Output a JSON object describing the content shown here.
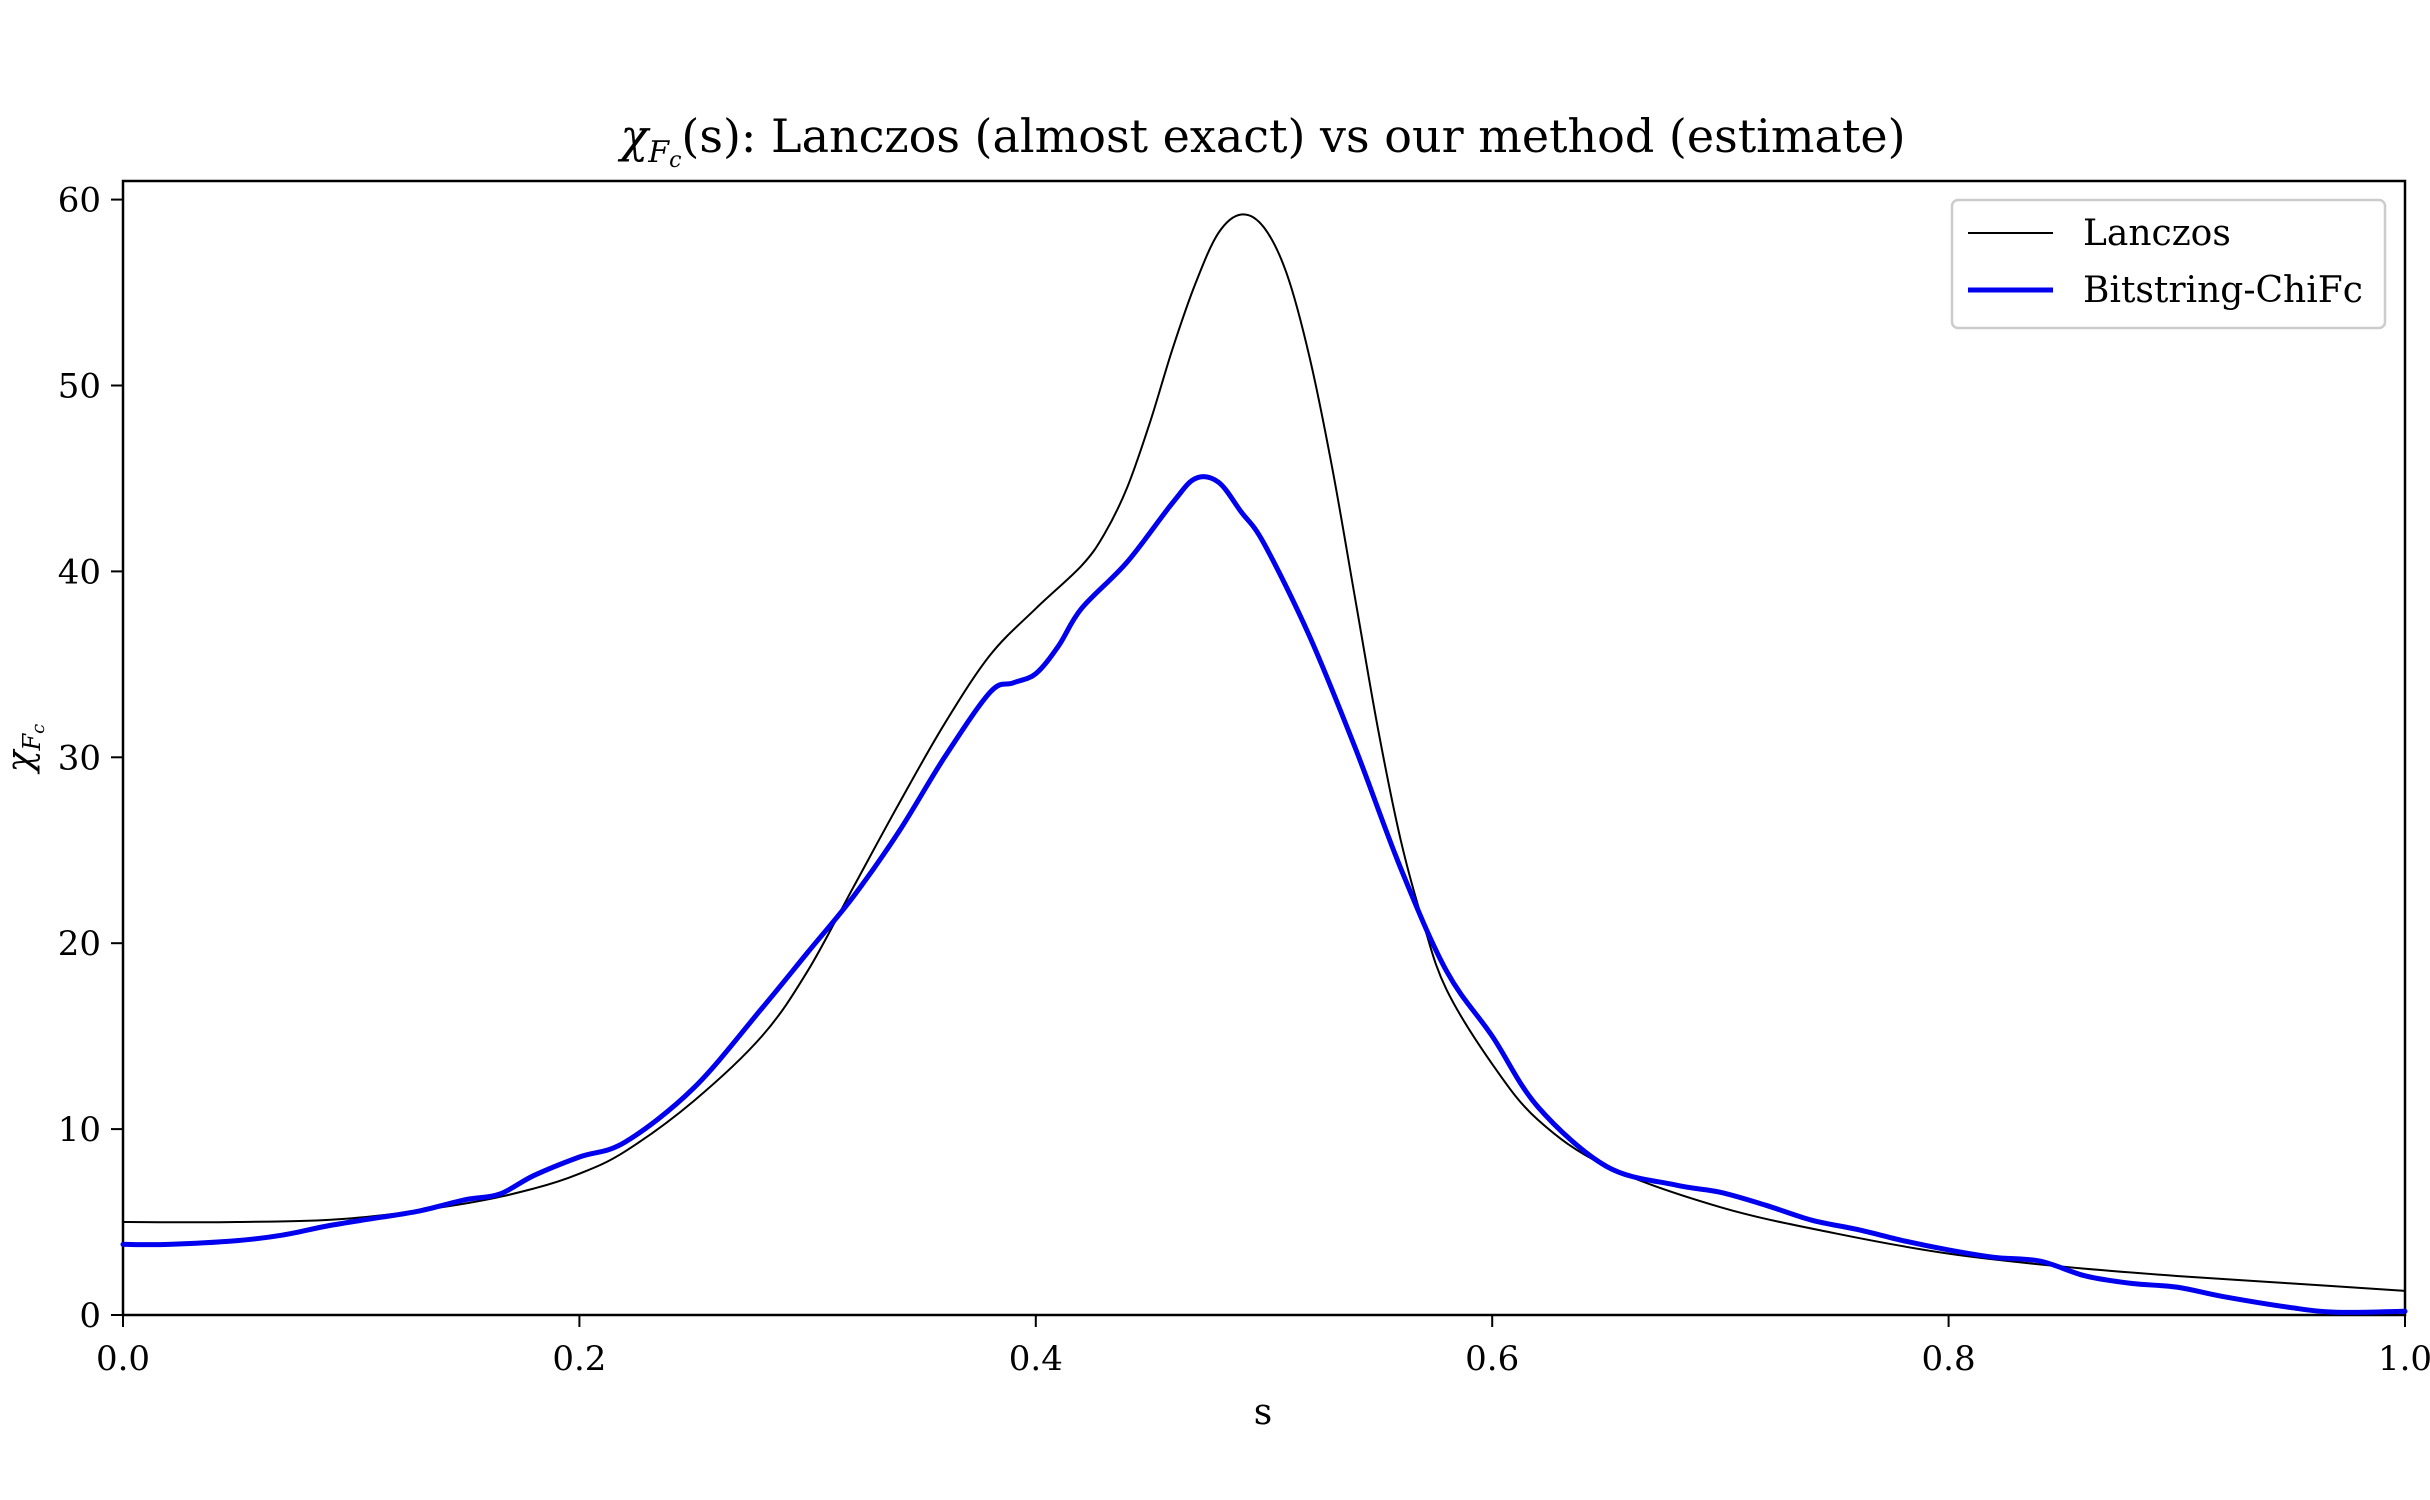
{
  "chart_data": {
    "type": "line",
    "title": {
      "prefix_symbol": "χ",
      "subscript": "F",
      "subsubscript": "c",
      "arg": "(s)",
      "text": ": Lanczos (almost exact) vs our method (estimate)"
    },
    "xlabel": "s",
    "ylabel": {
      "symbol": "χ",
      "subscript": "F",
      "subsubscript": "c"
    },
    "xlim": [
      0.0,
      1.0
    ],
    "ylim": [
      0,
      61
    ],
    "x_ticks": [
      {
        "value": 0.0,
        "label": "0.0"
      },
      {
        "value": 0.2,
        "label": "0.2"
      },
      {
        "value": 0.4,
        "label": "0.4"
      },
      {
        "value": 0.6,
        "label": "0.6"
      },
      {
        "value": 0.8,
        "label": "0.8"
      },
      {
        "value": 1.0,
        "label": "1.0"
      }
    ],
    "y_ticks": [
      {
        "value": 0,
        "label": "0"
      },
      {
        "value": 10,
        "label": "10"
      },
      {
        "value": 20,
        "label": "20"
      },
      {
        "value": 30,
        "label": "30"
      },
      {
        "value": 40,
        "label": "40"
      },
      {
        "value": 50,
        "label": "50"
      },
      {
        "value": 60,
        "label": "60"
      }
    ],
    "grid": false,
    "legend_position": "top-right",
    "series": [
      {
        "name": "Lanczos",
        "color": "#000000",
        "x": [
          0.0,
          0.05,
          0.1,
          0.15,
          0.18,
          0.2,
          0.22,
          0.25,
          0.28,
          0.3,
          0.32,
          0.34,
          0.36,
          0.38,
          0.4,
          0.42,
          0.43,
          0.44,
          0.45,
          0.46,
          0.47,
          0.48,
          0.49,
          0.5,
          0.51,
          0.52,
          0.53,
          0.54,
          0.55,
          0.56,
          0.57,
          0.58,
          0.6,
          0.62,
          0.65,
          0.7,
          0.75,
          0.8,
          0.85,
          0.9,
          0.95,
          1.0
        ],
        "y": [
          5.0,
          5.0,
          5.2,
          6.0,
          6.8,
          7.6,
          8.8,
          11.5,
          15.0,
          18.5,
          23.0,
          27.5,
          31.8,
          35.5,
          38.0,
          40.3,
          42.0,
          44.5,
          48.0,
          52.0,
          55.5,
          58.2,
          59.2,
          58.5,
          56.0,
          51.5,
          45.5,
          38.5,
          31.5,
          25.5,
          21.0,
          17.5,
          13.5,
          10.5,
          8.0,
          5.8,
          4.4,
          3.3,
          2.6,
          2.1,
          1.7,
          1.3
        ]
      },
      {
        "name": "Bitstring-ChiFc",
        "color": "#0000ee",
        "x": [
          0.0,
          0.02,
          0.05,
          0.07,
          0.09,
          0.11,
          0.13,
          0.15,
          0.165,
          0.18,
          0.2,
          0.22,
          0.25,
          0.28,
          0.3,
          0.32,
          0.34,
          0.36,
          0.38,
          0.39,
          0.4,
          0.41,
          0.42,
          0.44,
          0.46,
          0.47,
          0.48,
          0.49,
          0.5,
          0.52,
          0.54,
          0.56,
          0.58,
          0.6,
          0.62,
          0.65,
          0.68,
          0.7,
          0.72,
          0.74,
          0.76,
          0.78,
          0.8,
          0.82,
          0.84,
          0.86,
          0.88,
          0.9,
          0.92,
          0.95,
          0.97,
          1.0
        ],
        "y": [
          3.8,
          3.8,
          4.0,
          4.3,
          4.8,
          5.2,
          5.6,
          6.2,
          6.5,
          7.5,
          8.5,
          9.3,
          12.2,
          16.5,
          19.5,
          22.5,
          26.0,
          30.0,
          33.5,
          34.0,
          34.5,
          36.0,
          38.0,
          40.5,
          43.7,
          45.0,
          44.8,
          43.2,
          41.5,
          36.5,
          30.5,
          24.0,
          18.5,
          15.0,
          11.2,
          8.0,
          7.0,
          6.6,
          5.9,
          5.1,
          4.6,
          4.0,
          3.5,
          3.1,
          2.9,
          2.1,
          1.7,
          1.5,
          1.0,
          0.4,
          0.15,
          0.2
        ]
      }
    ]
  }
}
